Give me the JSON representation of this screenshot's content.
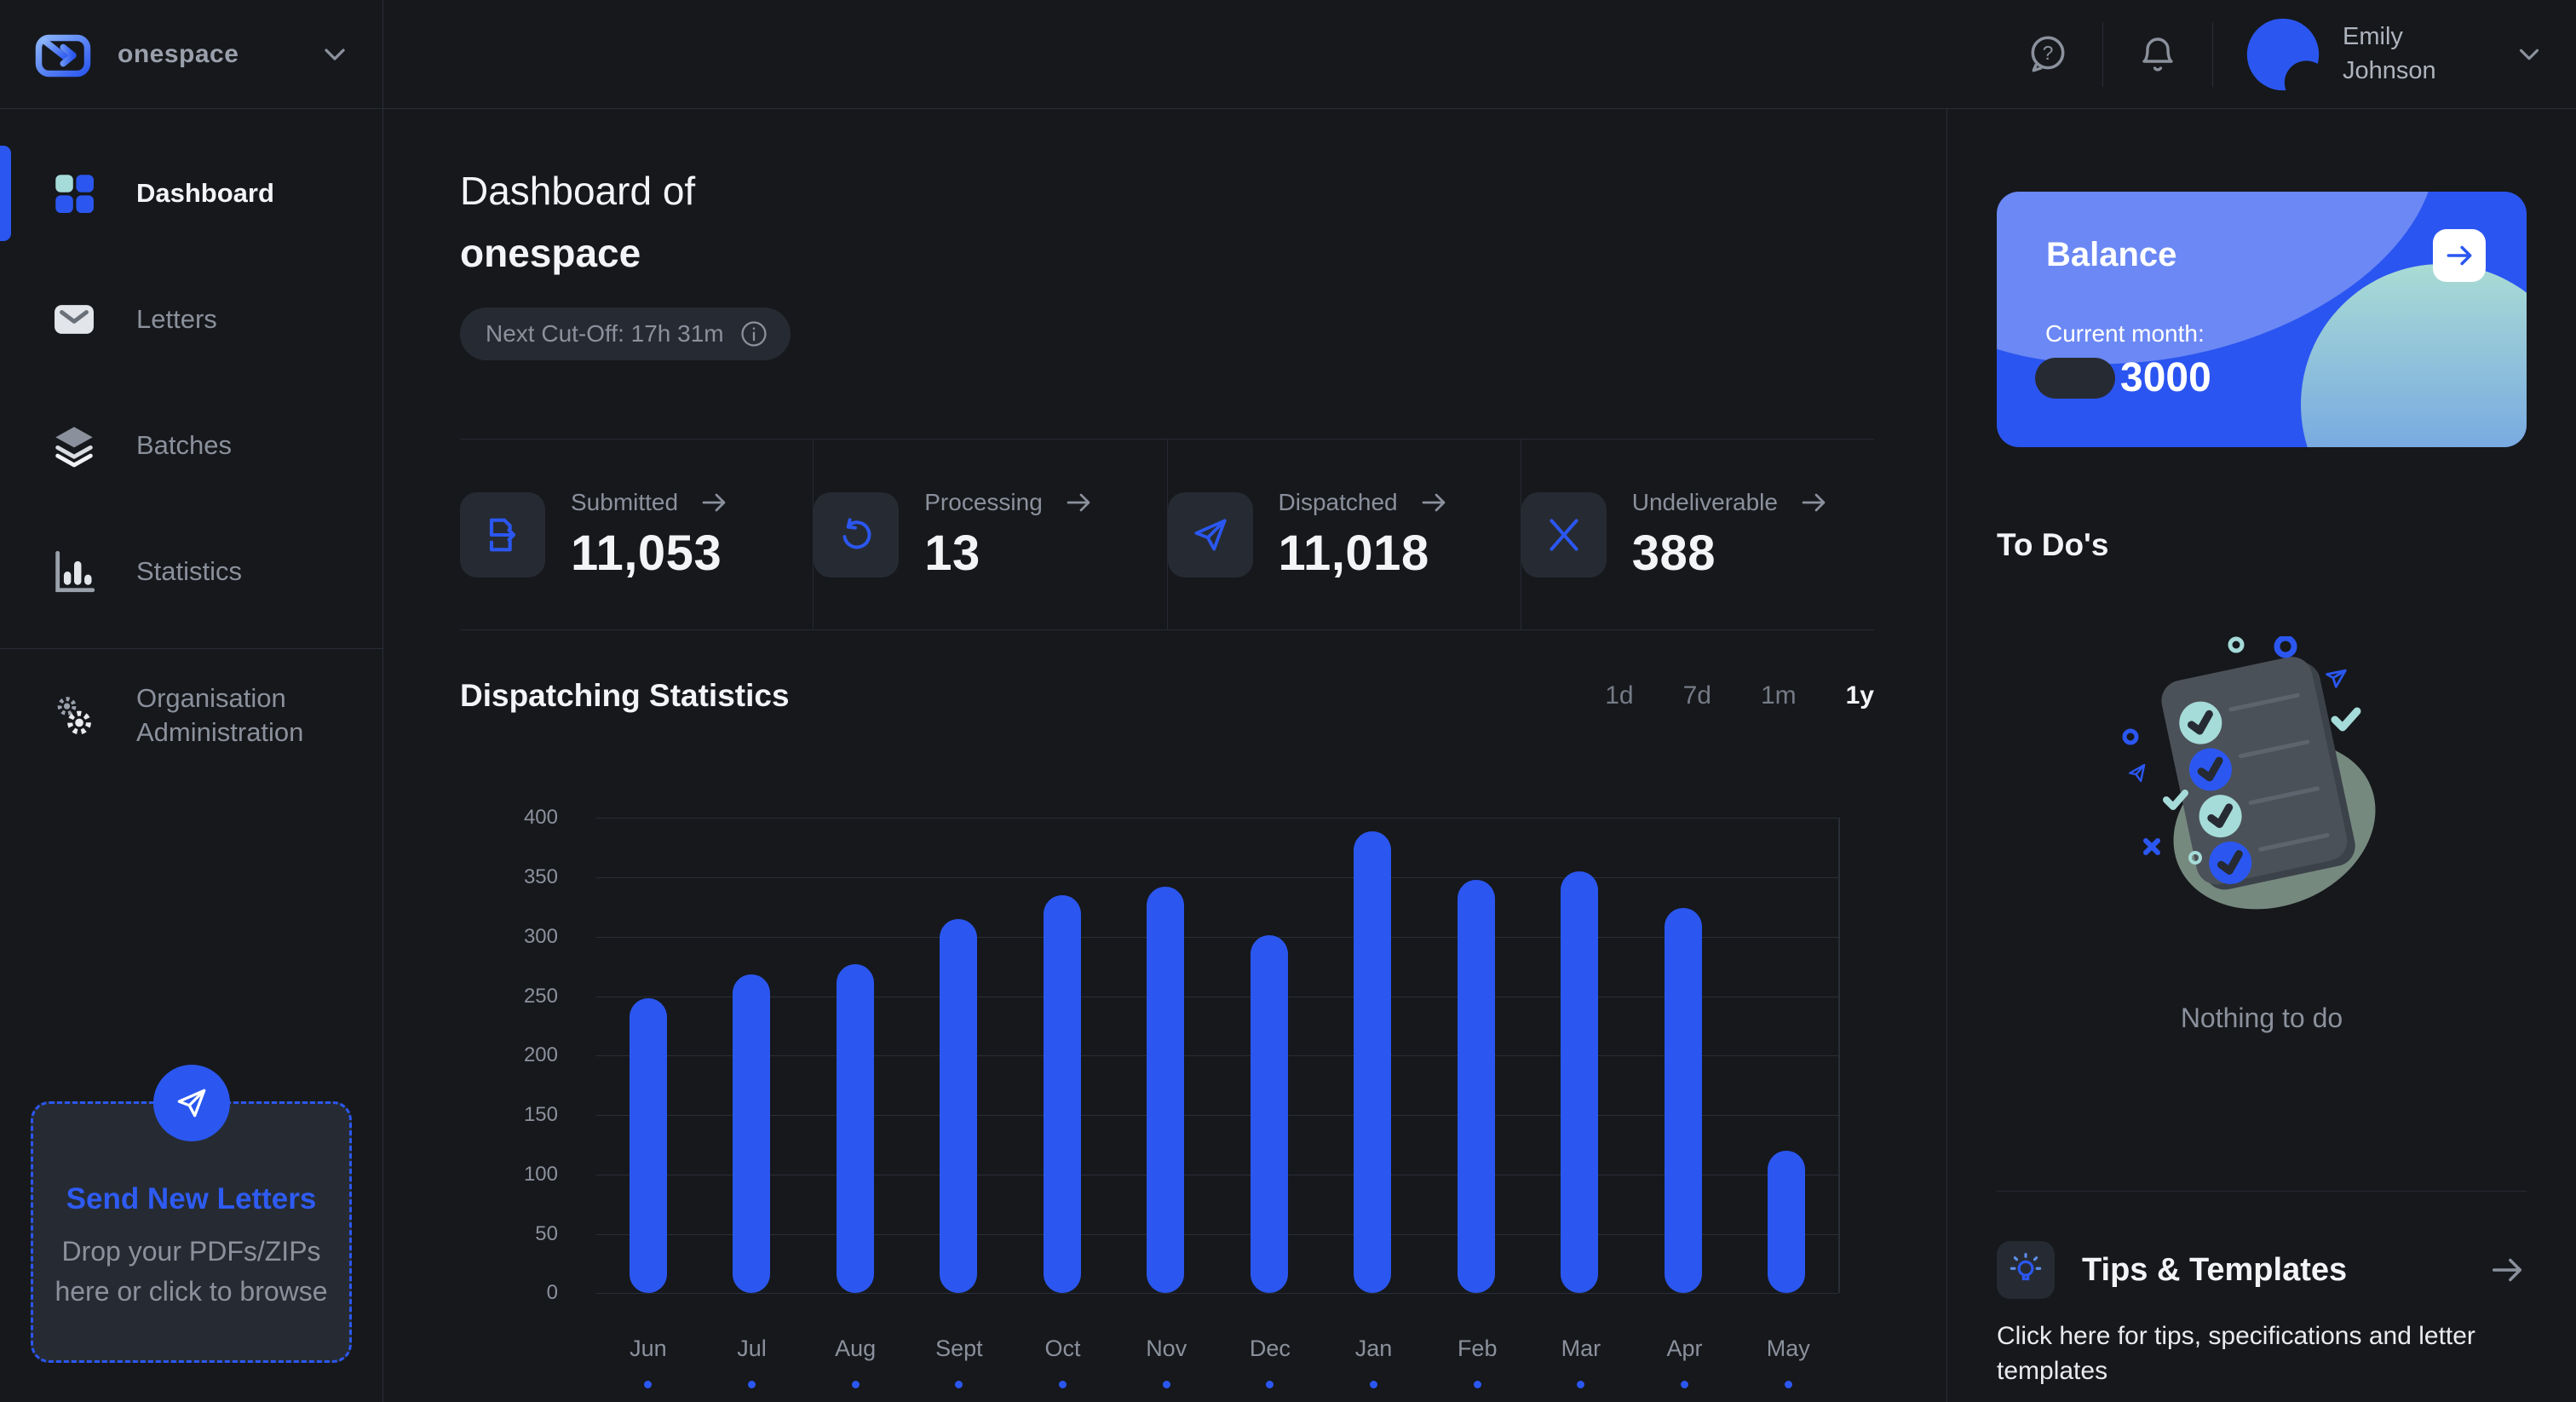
{
  "app": {
    "name": "onespace"
  },
  "topbar": {
    "icons": [
      "help-icon",
      "notifications-icon"
    ],
    "user": {
      "name": "Emily Johnson",
      "avatar": "abstract-blue-avatar"
    }
  },
  "sidebar": {
    "items": [
      {
        "label": "Dashboard",
        "icon": "dashboard-grid-icon",
        "active": true
      },
      {
        "label": "Letters",
        "icon": "envelope-icon",
        "active": false
      },
      {
        "label": "Batches",
        "icon": "layers-icon",
        "active": false
      },
      {
        "label": "Statistics",
        "icon": "bar-chart-icon",
        "active": false
      },
      {
        "label": "Organisation Administration",
        "icon": "gears-icon",
        "active": false
      }
    ],
    "dropzone": {
      "icon": "paper-plane-icon",
      "title": "Send New Letters",
      "subtitle": "Drop your PDFs/ZIPs here or click to browse"
    }
  },
  "header": {
    "title_line1": "Dashboard of",
    "title_line2": "onespace",
    "cutoff_badge": "Next Cut-Off: 17h 31m",
    "cutoff_icon": "info-icon"
  },
  "stats": [
    {
      "label": "Submitted",
      "value": "11,053",
      "icon": "document-export-icon"
    },
    {
      "label": "Processing",
      "value": "13",
      "icon": "refresh-icon"
    },
    {
      "label": "Dispatched",
      "value": "11,018",
      "icon": "paper-plane-icon"
    },
    {
      "label": "Undeliverable",
      "value": "388",
      "icon": "x-icon"
    }
  ],
  "chart": {
    "title": "Dispatching Statistics",
    "ranges": [
      {
        "label": "1d",
        "active": false
      },
      {
        "label": "7d",
        "active": false
      },
      {
        "label": "1m",
        "active": false
      },
      {
        "label": "1y",
        "active": true
      }
    ]
  },
  "chart_data": {
    "type": "bar",
    "title": "Dispatching Statistics",
    "categories": [
      "Jun",
      "Jul",
      "Aug",
      "Sept",
      "Oct",
      "Nov",
      "Dec",
      "Jan",
      "Feb",
      "Mar",
      "Apr",
      "May"
    ],
    "values": [
      248,
      268,
      277,
      315,
      335,
      342,
      301,
      389,
      348,
      355,
      324,
      120
    ],
    "xlabel": "",
    "ylabel": "",
    "ylim": [
      0,
      400
    ],
    "ytick_step": 50,
    "grid": true,
    "legend": "none",
    "bar_color": "#2B57F0"
  },
  "balance": {
    "title": "Balance",
    "arrow_icon": "arrow-right-icon",
    "current_month_label": "Current month:",
    "amount": "3000"
  },
  "todos": {
    "title": "To Do's",
    "illustration": "checklist-clipboard-illustration",
    "empty_text": "Nothing to do"
  },
  "tips": {
    "icon": "lightbulb-icon",
    "title": "Tips & Templates",
    "arrow_icon": "arrow-right-icon",
    "description": "Click here for tips, specifications and letter templates"
  },
  "colors": {
    "background": "#16181C",
    "panel": "#262B33",
    "divider": "#2A2E36",
    "accent": "#2B57F0",
    "teal": "#A5DBD8",
    "text_muted": "#8B919C"
  }
}
